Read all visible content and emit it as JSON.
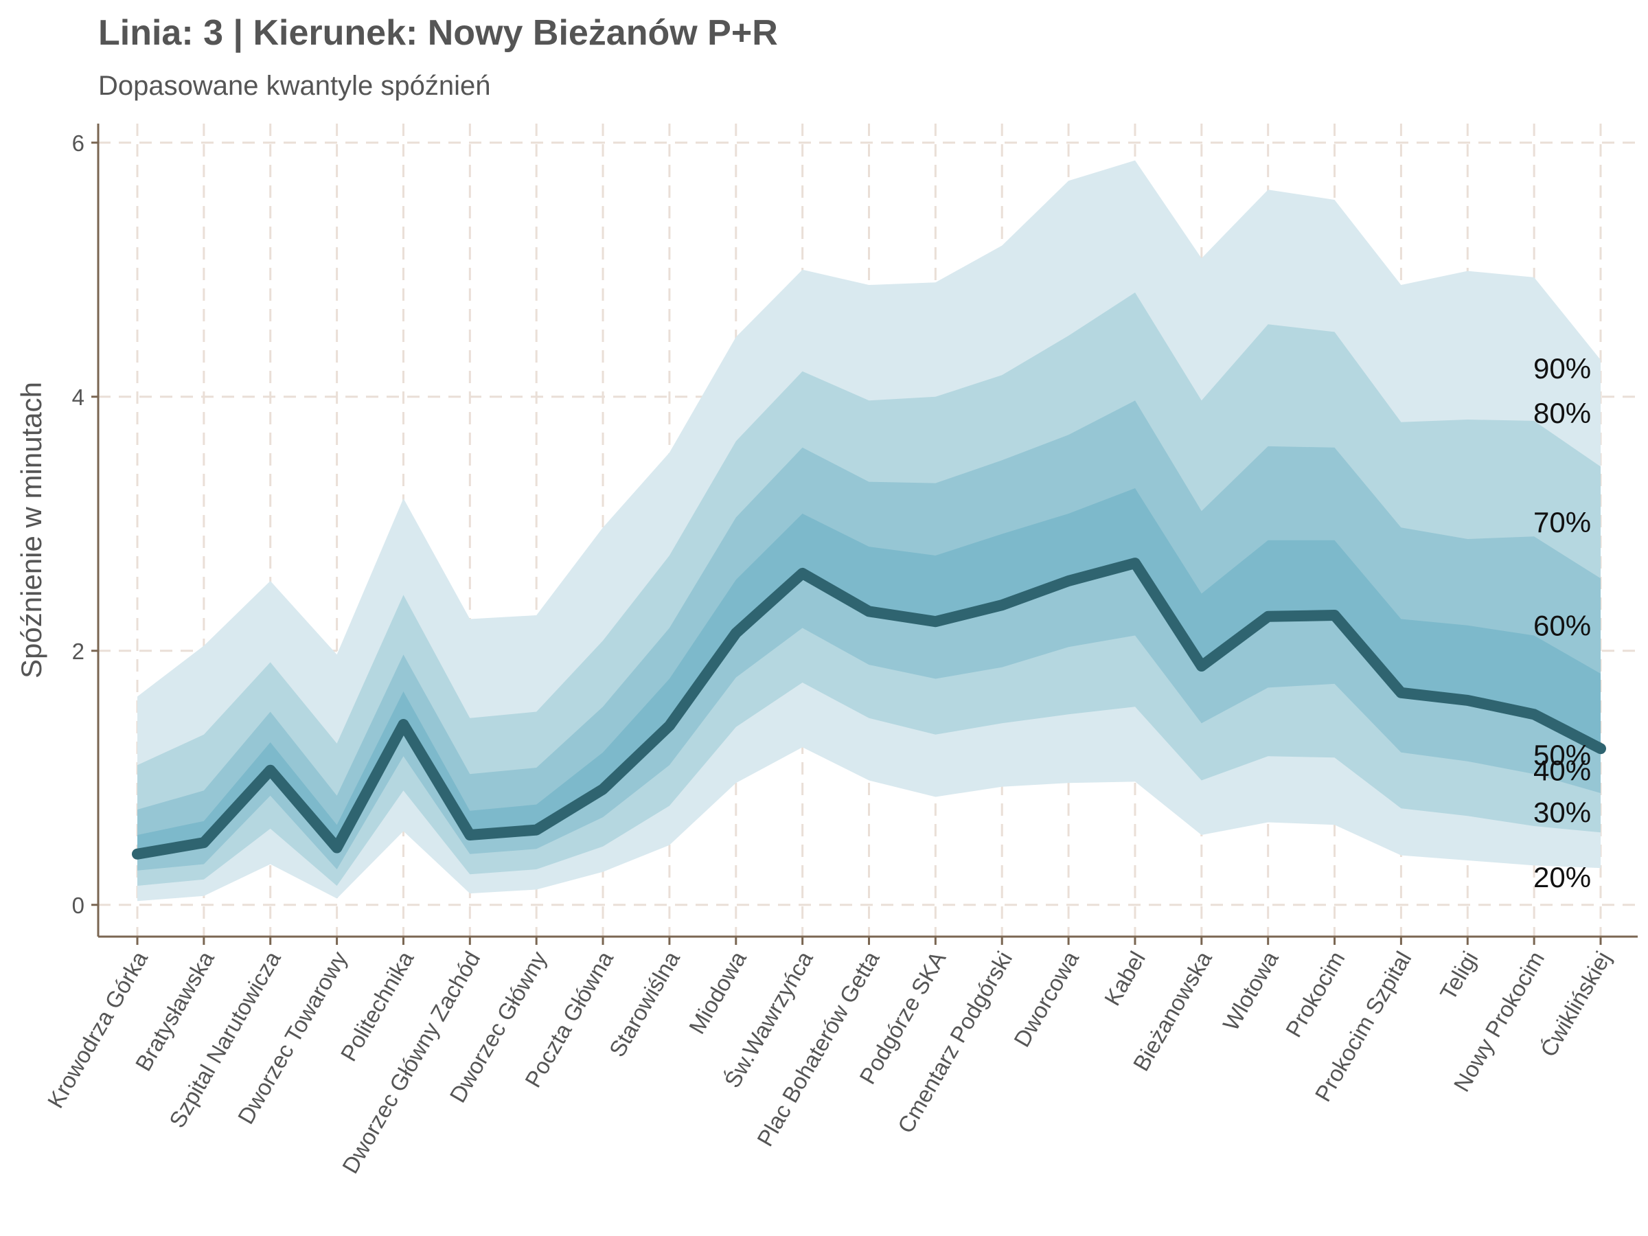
{
  "title": "Linia: 3 | Kierunek: Nowy Bieżanów P+R",
  "subtitle": "Dopasowane kwantyle spóźnień",
  "colors": {
    "band_outer": "#d9e9ef",
    "band_2": "#b5d7e0",
    "band_3": "#96c6d4",
    "band_inner": "#7db9cb",
    "median_line": "#2f6470",
    "grid": "#eadfd7",
    "axis": "#7a6652"
  },
  "chart_data": {
    "type": "area",
    "title": "Linia: 3 | Kierunek: Nowy Bieżanów P+R",
    "subtitle": "Dopasowane kwantyle spóźnień",
    "xlabel": "",
    "ylabel": "Spóźnienie w minutach",
    "ylim": [
      -0.25,
      6.15
    ],
    "yticks": [
      0,
      2,
      4,
      6
    ],
    "grid": true,
    "categories": [
      "Krowodrza Górka",
      "Bratysławska",
      "Szpital Narutowicza",
      "Dworzec Towarowy",
      "Politechnika",
      "Dworzec Główny Zachód",
      "Dworzec Główny",
      "Poczta Główna",
      "Starowiślna",
      "Miodowa",
      "Św.Wawrzyńca",
      "Plac Bohaterów Getta",
      "Podgórze SKA",
      "Cmentarz Podgórski",
      "Dworcowa",
      "Kabel",
      "Bieżanowska",
      "Wlotowa",
      "Prokocim",
      "Prokocim Szpital",
      "Teligi",
      "Nowy Prokocim",
      "Ćwiklińskiej"
    ],
    "series": [
      {
        "name": "20%",
        "values": [
          0.03,
          0.07,
          0.32,
          0.05,
          0.58,
          0.09,
          0.12,
          0.26,
          0.47,
          0.96,
          1.24,
          0.98,
          0.85,
          0.93,
          0.96,
          0.97,
          0.55,
          0.65,
          0.63,
          0.39,
          0.35,
          0.31,
          0.29
        ]
      },
      {
        "name": "30%",
        "values": [
          0.15,
          0.2,
          0.6,
          0.15,
          0.9,
          0.24,
          0.28,
          0.46,
          0.78,
          1.4,
          1.75,
          1.47,
          1.34,
          1.43,
          1.5,
          1.56,
          0.98,
          1.17,
          1.16,
          0.76,
          0.7,
          0.62,
          0.57
        ]
      },
      {
        "name": "40%",
        "values": [
          0.27,
          0.32,
          0.86,
          0.28,
          1.17,
          0.4,
          0.44,
          0.69,
          1.1,
          1.79,
          2.18,
          1.89,
          1.78,
          1.87,
          2.03,
          2.12,
          1.43,
          1.71,
          1.74,
          1.2,
          1.13,
          1.03,
          0.88
        ]
      },
      {
        "name": "50%",
        "values": [
          0.4,
          0.49,
          1.06,
          0.45,
          1.42,
          0.55,
          0.59,
          0.91,
          1.41,
          2.14,
          2.61,
          2.31,
          2.23,
          2.36,
          2.55,
          2.69,
          1.88,
          2.27,
          2.28,
          1.67,
          1.61,
          1.5,
          1.23
        ]
      },
      {
        "name": "60%",
        "values": [
          0.55,
          0.66,
          1.28,
          0.63,
          1.68,
          0.74,
          0.79,
          1.2,
          1.78,
          2.56,
          3.08,
          2.82,
          2.75,
          2.92,
          3.08,
          3.28,
          2.45,
          2.87,
          2.87,
          2.25,
          2.2,
          2.12,
          1.82
        ]
      },
      {
        "name": "70%",
        "values": [
          0.75,
          0.9,
          1.52,
          0.86,
          1.97,
          1.03,
          1.08,
          1.56,
          2.18,
          3.05,
          3.6,
          3.33,
          3.32,
          3.5,
          3.7,
          3.97,
          3.1,
          3.61,
          3.6,
          2.97,
          2.88,
          2.9,
          2.57
        ]
      },
      {
        "name": "80%",
        "values": [
          1.1,
          1.34,
          1.91,
          1.27,
          2.44,
          1.47,
          1.52,
          2.08,
          2.75,
          3.65,
          4.2,
          3.97,
          4.0,
          4.17,
          4.48,
          4.82,
          3.97,
          4.57,
          4.51,
          3.8,
          3.82,
          3.81,
          3.45
        ]
      },
      {
        "name": "90%",
        "values": [
          1.64,
          2.04,
          2.55,
          1.97,
          3.2,
          2.25,
          2.28,
          2.97,
          3.56,
          4.47,
          5.0,
          4.88,
          4.9,
          5.19,
          5.7,
          5.86,
          5.09,
          5.63,
          5.55,
          4.88,
          4.99,
          4.94,
          4.29
        ]
      }
    ],
    "band_labels": [
      "90%",
      "80%",
      "70%",
      "60%",
      "50%",
      "40%",
      "30%",
      "20%"
    ]
  }
}
